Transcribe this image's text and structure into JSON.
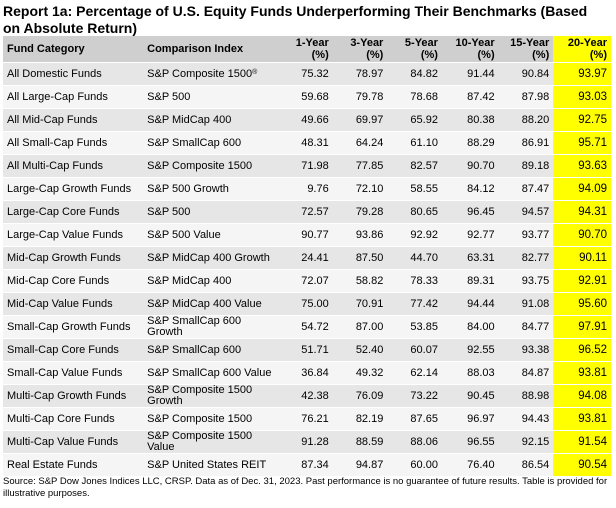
{
  "title": "Report 1a: Percentage of U.S. Equity Funds Underperforming Their Benchmarks (Based on Absolute Return)",
  "columns": [
    {
      "label": "Fund Category"
    },
    {
      "label": "Comparison Index"
    },
    {
      "label": "1-Year",
      "sub": "(%)"
    },
    {
      "label": "3-Year",
      "sub": "(%)"
    },
    {
      "label": "5-Year",
      "sub": "(%)"
    },
    {
      "label": "10-Year",
      "sub": "(%)"
    },
    {
      "label": "15-Year",
      "sub": "(%)"
    },
    {
      "label": "20-Year",
      "sub": "(%)"
    }
  ],
  "rows": [
    {
      "category": "All Domestic Funds",
      "index": "S&P Composite 1500",
      "index_sup": "®",
      "y1": "75.32",
      "y3": "78.97",
      "y5": "84.82",
      "y10": "91.44",
      "y15": "90.84",
      "y20": "93.97"
    },
    {
      "category": "All Large-Cap Funds",
      "index": "S&P 500",
      "y1": "59.68",
      "y3": "79.78",
      "y5": "78.68",
      "y10": "87.42",
      "y15": "87.98",
      "y20": "93.03"
    },
    {
      "category": "All Mid-Cap Funds",
      "index": "S&P MidCap 400",
      "y1": "49.66",
      "y3": "69.97",
      "y5": "65.92",
      "y10": "80.38",
      "y15": "88.20",
      "y20": "92.75"
    },
    {
      "category": "All Small-Cap Funds",
      "index": "S&P SmallCap 600",
      "y1": "48.31",
      "y3": "64.24",
      "y5": "61.10",
      "y10": "88.29",
      "y15": "86.91",
      "y20": "95.71"
    },
    {
      "category": "All Multi-Cap Funds",
      "index": "S&P Composite 1500",
      "y1": "71.98",
      "y3": "77.85",
      "y5": "82.57",
      "y10": "90.70",
      "y15": "89.18",
      "y20": "93.63"
    },
    {
      "category": "Large-Cap Growth Funds",
      "index": "S&P 500 Growth",
      "y1": "9.76",
      "y3": "72.10",
      "y5": "58.55",
      "y10": "84.12",
      "y15": "87.47",
      "y20": "94.09"
    },
    {
      "category": "Large-Cap Core Funds",
      "index": "S&P 500",
      "y1": "72.57",
      "y3": "79.28",
      "y5": "80.65",
      "y10": "96.45",
      "y15": "94.57",
      "y20": "94.31"
    },
    {
      "category": "Large-Cap Value Funds",
      "index": "S&P 500 Value",
      "y1": "90.77",
      "y3": "93.86",
      "y5": "92.92",
      "y10": "92.77",
      "y15": "93.77",
      "y20": "90.70"
    },
    {
      "category": "Mid-Cap Growth Funds",
      "index": "S&P MidCap 400 Growth",
      "y1": "24.41",
      "y3": "87.50",
      "y5": "44.70",
      "y10": "63.31",
      "y15": "82.77",
      "y20": "90.11"
    },
    {
      "category": "Mid-Cap Core Funds",
      "index": "S&P MidCap 400",
      "y1": "72.07",
      "y3": "58.82",
      "y5": "78.33",
      "y10": "89.31",
      "y15": "93.75",
      "y20": "92.91"
    },
    {
      "category": "Mid-Cap Value Funds",
      "index": "S&P MidCap 400 Value",
      "y1": "75.00",
      "y3": "70.91",
      "y5": "77.42",
      "y10": "94.44",
      "y15": "91.08",
      "y20": "95.60"
    },
    {
      "category": "Small-Cap Growth Funds",
      "index": "S&P SmallCap 600 Growth",
      "y1": "54.72",
      "y3": "87.00",
      "y5": "53.85",
      "y10": "84.00",
      "y15": "84.77",
      "y20": "97.91"
    },
    {
      "category": "Small-Cap Core Funds",
      "index": "S&P SmallCap 600",
      "y1": "51.71",
      "y3": "52.40",
      "y5": "60.07",
      "y10": "92.55",
      "y15": "93.38",
      "y20": "96.52"
    },
    {
      "category": "Small-Cap Value Funds",
      "index": "S&P SmallCap 600 Value",
      "y1": "36.84",
      "y3": "49.32",
      "y5": "62.14",
      "y10": "88.03",
      "y15": "84.87",
      "y20": "93.81"
    },
    {
      "category": "Multi-Cap Growth Funds",
      "index": "S&P Composite 1500 Growth",
      "y1": "42.38",
      "y3": "76.09",
      "y5": "73.22",
      "y10": "90.45",
      "y15": "88.98",
      "y20": "94.08"
    },
    {
      "category": "Multi-Cap Core Funds",
      "index": "S&P Composite 1500",
      "y1": "76.21",
      "y3": "82.19",
      "y5": "87.65",
      "y10": "96.97",
      "y15": "94.43",
      "y20": "93.81"
    },
    {
      "category": "Multi-Cap Value Funds",
      "index": "S&P Composite 1500 Value",
      "y1": "91.28",
      "y3": "88.59",
      "y5": "88.06",
      "y10": "96.55",
      "y15": "92.15",
      "y20": "91.54"
    },
    {
      "category": "Real Estate Funds",
      "index": "S&P United States REIT",
      "y1": "87.34",
      "y3": "94.87",
      "y5": "60.00",
      "y10": "76.40",
      "y15": "86.54",
      "y20": "90.54"
    }
  ],
  "footer": "Source: S&P Dow Jones Indices LLC, CRSP.  Data as of Dec. 31, 2023.  Past performance is no guarantee of future results.  Table is provided for illustrative purposes.",
  "colors": {
    "header_bg": "#cfcfcf",
    "highlight": "#ffff00",
    "row_odd": "#e6e6e6",
    "row_even": "#f5f5f5"
  }
}
